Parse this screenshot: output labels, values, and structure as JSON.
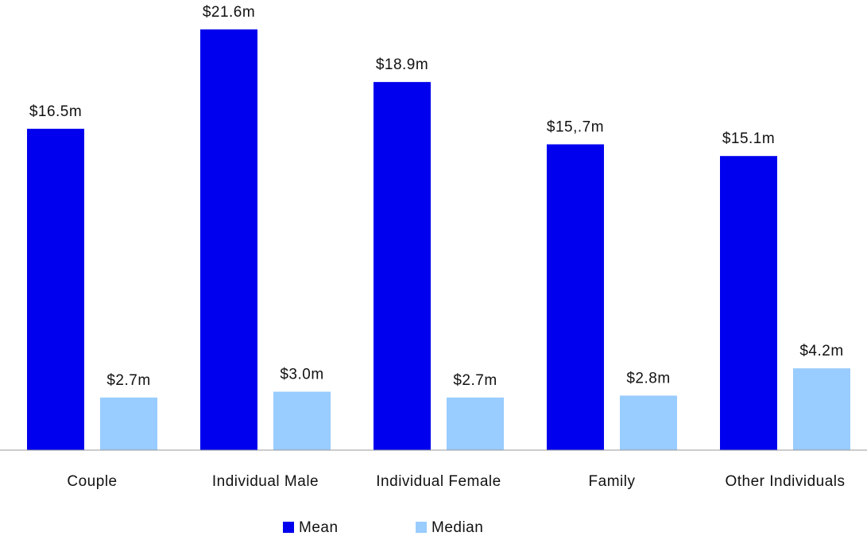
{
  "chart_data": {
    "type": "bar",
    "categories": [
      "Couple",
      "Individual Male",
      "Individual Female",
      "Family",
      "Other Individuals"
    ],
    "series": [
      {
        "name": "Mean",
        "color": "#0000ee",
        "values": [
          16.5,
          21.6,
          18.9,
          15.7,
          15.1
        ],
        "value_labels": [
          "$16.5m",
          "$21.6m",
          "$18.9m",
          "$15,.7m",
          "$15.1m"
        ]
      },
      {
        "name": "Median",
        "color": "#99ccff",
        "values": [
          2.7,
          3.0,
          2.7,
          2.8,
          4.2
        ],
        "value_labels": [
          "$2.7m",
          "$3.0m",
          "$2.7m",
          "$2.8m",
          "$4.2m"
        ]
      }
    ],
    "legend": "bottom"
  }
}
